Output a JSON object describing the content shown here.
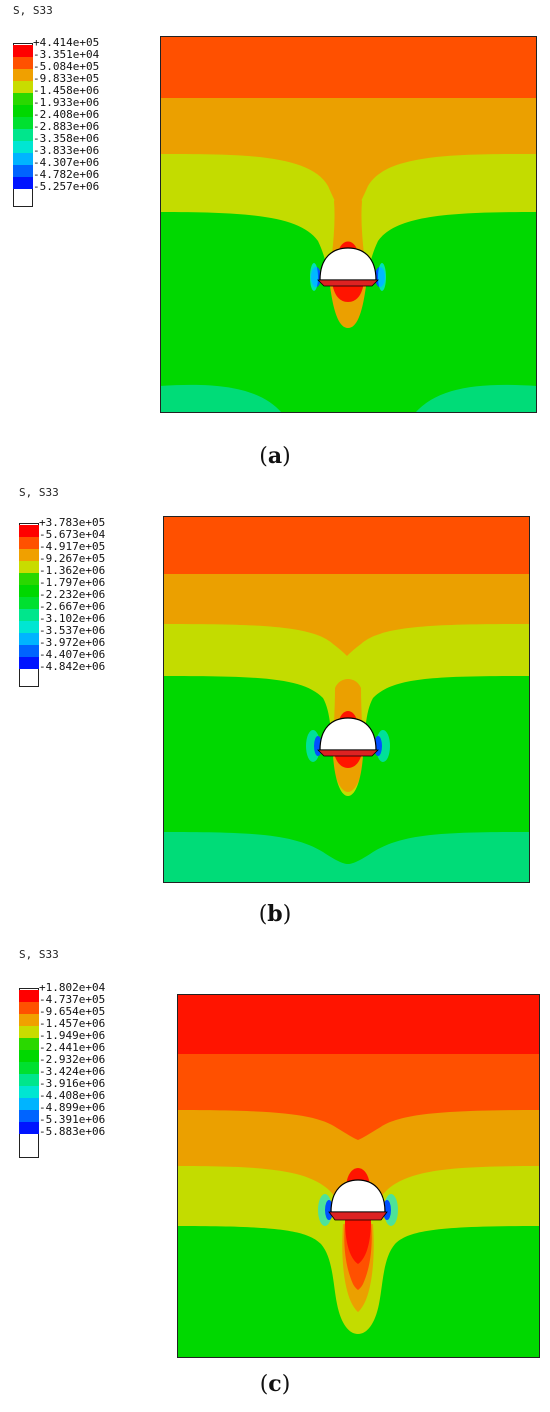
{
  "panels": [
    {
      "id": "a",
      "variable": "S, S33",
      "caption_letter": "a",
      "legend": [
        "+4.414e+05",
        "-3.351e+04",
        "-5.084e+05",
        "-9.833e+05",
        "-1.458e+06",
        "-1.933e+06",
        "-2.408e+06",
        "-2.883e+06",
        "-3.358e+06",
        "-3.833e+06",
        "-4.307e+06",
        "-4.782e+06",
        "-5.257e+06"
      ]
    },
    {
      "id": "b",
      "variable": "S, S33",
      "caption_letter": "b",
      "legend": [
        "+3.783e+05",
        "-5.673e+04",
        "-4.917e+05",
        "-9.267e+05",
        "-1.362e+06",
        "-1.797e+06",
        "-2.232e+06",
        "-2.667e+06",
        "-3.102e+06",
        "-3.537e+06",
        "-3.972e+06",
        "-4.407e+06",
        "-4.842e+06"
      ]
    },
    {
      "id": "c",
      "variable": "S, S33",
      "caption_letter": "c",
      "legend": [
        "+1.802e+04",
        "-4.737e+05",
        "-9.654e+05",
        "-1.457e+06",
        "-1.949e+06",
        "-2.441e+06",
        "-2.932e+06",
        "-3.424e+06",
        "-3.916e+06",
        "-4.408e+06",
        "-4.899e+06",
        "-5.391e+06",
        "-5.883e+06"
      ]
    }
  ],
  "colors": {
    "band_colors": [
      "#ff0000",
      "#ff5100",
      "#f0a000",
      "#c8dc00",
      "#2ad800",
      "#00d800",
      "#00e030",
      "#00e68c",
      "#00e6d2",
      "#00b4ff",
      "#0064ff",
      "#0014ff"
    ],
    "red": "#ff1400",
    "red_orange": "#ff5000",
    "orange": "#eba000",
    "yellow_green": "#c3dc00",
    "green": "#00d800",
    "green_teal": "#00dc78",
    "cyan": "#00e6ff",
    "blue": "#0050ff"
  }
}
